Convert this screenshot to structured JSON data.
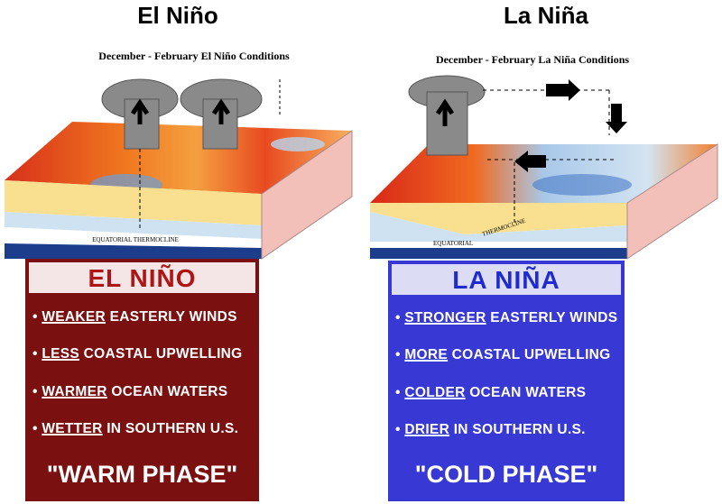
{
  "panels": [
    {
      "title": "El Niño",
      "caption": "December - February El Niño Conditions",
      "thermocline": [
        "EQUATORIAL",
        "THERMOCLINE"
      ],
      "box": {
        "heading": "EL NIÑO",
        "bullets": [
          {
            "emphasis": "WEAKER",
            "rest": "EASTERLY WINDS"
          },
          {
            "emphasis": "LESS",
            "rest": "COASTAL UPWELLING"
          },
          {
            "emphasis": "WARMER",
            "rest": "OCEAN WATERS"
          },
          {
            "emphasis": "WETTER",
            "rest": "IN SOUTHERN U.S."
          }
        ],
        "phase": "\"WARM PHASE\""
      }
    },
    {
      "title": "La Niña",
      "caption": "December - February La Niña Conditions",
      "thermocline": [
        "EQUATORIAL",
        "THERMOCLINE"
      ],
      "box": {
        "heading": "LA NIÑA",
        "bullets": [
          {
            "emphasis": "STRONGER",
            "rest": "EASTERLY WINDS"
          },
          {
            "emphasis": "MORE",
            "rest": "COASTAL UPWELLING"
          },
          {
            "emphasis": "COLDER",
            "rest": "OCEAN WATERS"
          },
          {
            "emphasis": "DRIER",
            "rest": "IN SOUTHERN U.S."
          }
        ],
        "phase": "\"COLD PHASE\""
      }
    }
  ]
}
